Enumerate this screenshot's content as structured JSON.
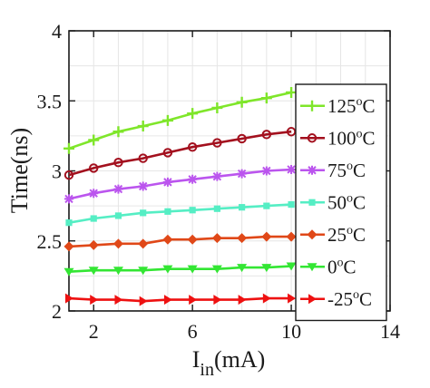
{
  "chart_data": {
    "type": "line",
    "xlabel": "I",
    "xlabel_sub": "in",
    "xlabel_tail": "(mA)",
    "ylabel": "Time(ns)",
    "xlim": [
      1,
      14
    ],
    "ylim": [
      2,
      4
    ],
    "xticks": [
      2,
      6,
      10,
      14
    ],
    "yticks": [
      2,
      2.5,
      3,
      3.5,
      4
    ],
    "xtick_labels": [
      "2",
      "6",
      "10",
      "14"
    ],
    "ytick_labels": [
      "2",
      "2.5",
      "3",
      "3.5",
      "4"
    ],
    "grid": true,
    "legend_position": "right",
    "x": [
      1,
      2,
      3,
      4,
      5,
      6,
      7,
      8,
      9,
      10
    ],
    "series": [
      {
        "name": "125",
        "unit": "C",
        "degree": "o",
        "color": "#7fe62a",
        "marker": "plus",
        "values": [
          3.16,
          3.22,
          3.28,
          3.32,
          3.36,
          3.41,
          3.45,
          3.49,
          3.52,
          3.56
        ]
      },
      {
        "name": "100",
        "unit": "C",
        "degree": "o",
        "color": "#a3101e",
        "marker": "circle",
        "values": [
          2.97,
          3.02,
          3.06,
          3.09,
          3.13,
          3.17,
          3.2,
          3.23,
          3.26,
          3.28
        ]
      },
      {
        "name": "75",
        "unit": "C",
        "degree": "o",
        "color": "#bb55ee",
        "marker": "asterisk",
        "values": [
          2.8,
          2.84,
          2.87,
          2.89,
          2.92,
          2.94,
          2.96,
          2.98,
          3.0,
          3.01
        ]
      },
      {
        "name": "50",
        "unit": "C",
        "degree": "o",
        "color": "#55eec4",
        "marker": "square",
        "values": [
          2.63,
          2.66,
          2.68,
          2.7,
          2.71,
          2.72,
          2.73,
          2.74,
          2.75,
          2.76
        ]
      },
      {
        "name": "25",
        "unit": "C",
        "degree": "o",
        "color": "#e04818",
        "marker": "diamond",
        "values": [
          2.46,
          2.47,
          2.48,
          2.48,
          2.51,
          2.51,
          2.52,
          2.52,
          2.53,
          2.53
        ]
      },
      {
        "name": "0",
        "unit": "C",
        "degree": "o",
        "color": "#33e633",
        "marker": "triangle-down",
        "values": [
          2.28,
          2.29,
          2.29,
          2.29,
          2.3,
          2.3,
          2.3,
          2.31,
          2.31,
          2.32
        ]
      },
      {
        "name": "-25",
        "unit": "C",
        "degree": "o",
        "color": "#ee1111",
        "marker": "triangle-right",
        "values": [
          2.09,
          2.08,
          2.08,
          2.07,
          2.08,
          2.08,
          2.08,
          2.08,
          2.09,
          2.09
        ]
      }
    ]
  }
}
